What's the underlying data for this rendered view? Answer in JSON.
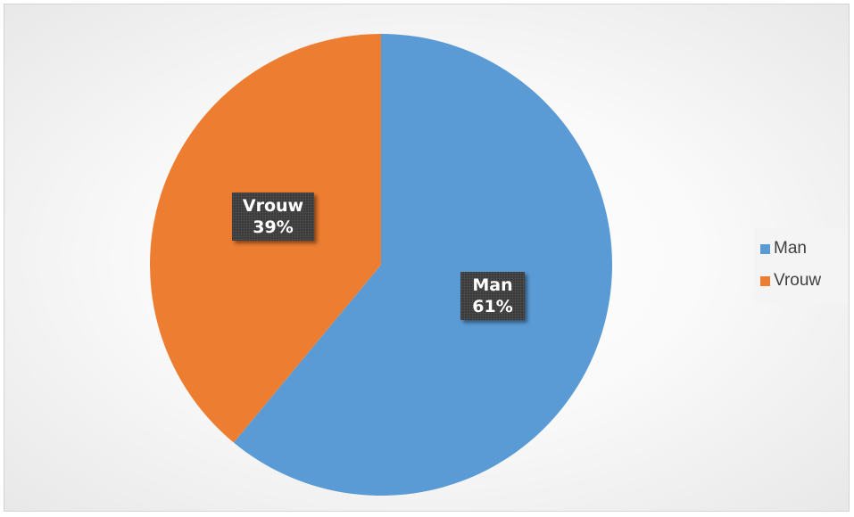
{
  "chart_data": {
    "type": "pie",
    "categories": [
      "Man",
      "Vrouw"
    ],
    "values": [
      61,
      39
    ],
    "unit": "%",
    "colors": [
      "#5b9bd5",
      "#ed7d31"
    ],
    "start_angle": "12 o'clock, clockwise",
    "data_labels": [
      {
        "category": "Man",
        "percent": "61%"
      },
      {
        "category": "Vrouw",
        "percent": "39%"
      }
    ],
    "legend": {
      "placement": "right",
      "entries": [
        "Man",
        "Vrouw"
      ]
    }
  }
}
